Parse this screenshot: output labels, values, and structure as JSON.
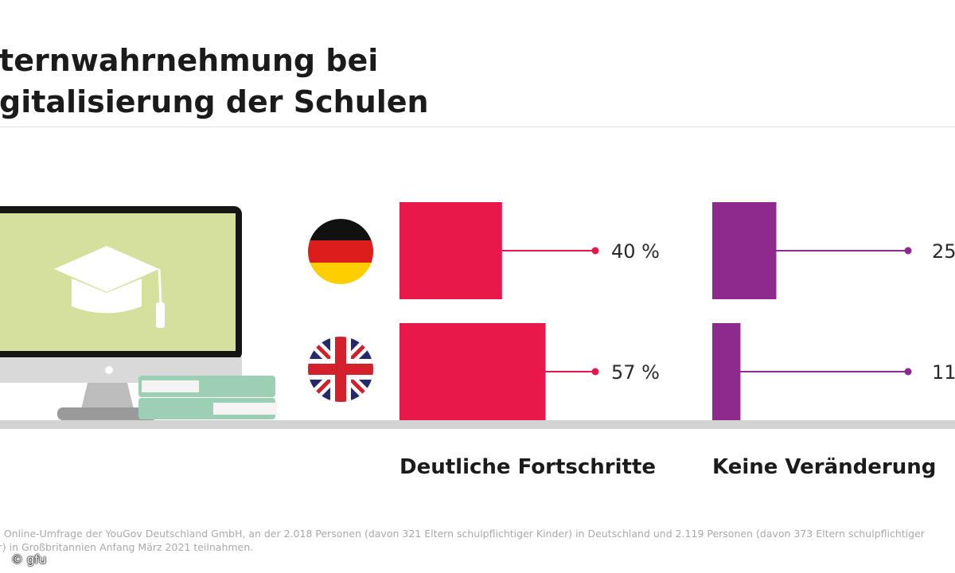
{
  "title_lines": [
    "lternwahrnehmung bei",
    "igitalisierung der Schulen"
  ],
  "chart_data": {
    "type": "bar",
    "orientation": "horizontal",
    "countries": [
      {
        "flag": "germany-flag-icon"
      },
      {
        "flag": "uk-flag-icon"
      }
    ],
    "groups": [
      {
        "label": "Deutliche Fortschritte",
        "color": "#e8184a",
        "values": [
          40,
          57
        ],
        "value_labels": [
          "40 %",
          "57 %"
        ]
      },
      {
        "label": "Keine Veränderung",
        "color": "#8e2a8e",
        "values": [
          25,
          11
        ],
        "value_labels": [
          "25",
          "11"
        ]
      }
    ],
    "unit": "%",
    "grid": false,
    "legend": "none"
  },
  "source": "lle: Online-Umfrage der YouGov Deutschland GmbH, an der 2.018 Personen (davon 321 Eltern schulpflichtiger Kinder) in Deutschland und 2.119 Personen (davon 373 Eltern schulpflichtiger der) in Großbritannien Anfang März 2021 teilnahmen.",
  "credit": "© gfu",
  "colors": {
    "pink": "#e8184a",
    "purple": "#8e2a8e",
    "screen": "#d4e09b",
    "books": "#9dcfb4"
  }
}
